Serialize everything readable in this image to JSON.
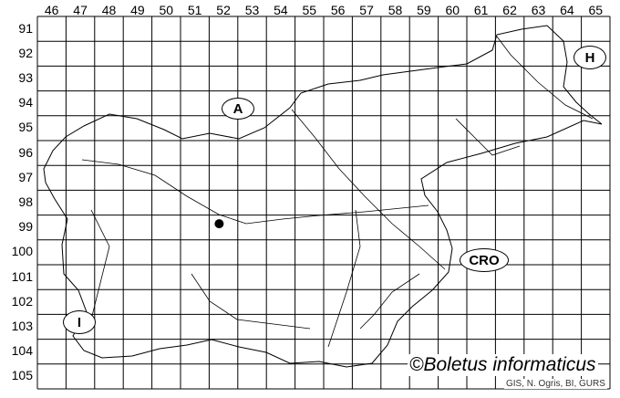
{
  "grid": {
    "columns": [
      "46",
      "47",
      "48",
      "49",
      "50",
      "51",
      "52",
      "53",
      "54",
      "55",
      "56",
      "57",
      "58",
      "59",
      "60",
      "61",
      "62",
      "63",
      "64",
      "65"
    ],
    "rows": [
      "91",
      "92",
      "93",
      "94",
      "95",
      "96",
      "97",
      "98",
      "99",
      "100",
      "101",
      "102",
      "103",
      "104",
      "105"
    ]
  },
  "neighbours": [
    {
      "label": "A",
      "name": "neighbour-a"
    },
    {
      "label": "H",
      "name": "neighbour-h"
    },
    {
      "label": "CRO",
      "name": "neighbour-cro"
    },
    {
      "label": "I",
      "name": "neighbour-i"
    }
  ],
  "records": [
    {
      "grid_column": "52",
      "grid_row": "99"
    }
  ],
  "copyright": "©Boletus informaticus",
  "source": "GIS, N. Ogris, BI, GURS",
  "colors": {
    "lines": "#000000",
    "background": "#ffffff"
  }
}
